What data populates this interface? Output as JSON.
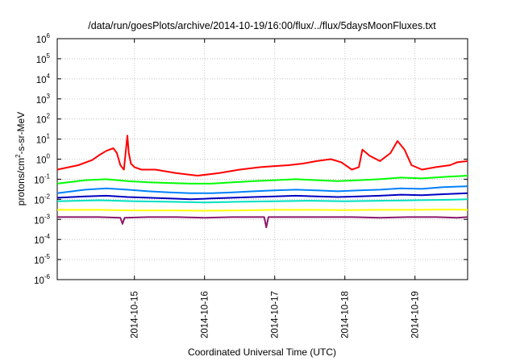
{
  "chart_data": {
    "type": "line",
    "title": "/data/run/goesPlots/archive/2014-10-19/16:00/flux/../flux/5daysMoonFluxes.txt",
    "xlabel": "Coordinated Universal Time (UTC)",
    "ylabel_base": "protons/cm",
    "ylabel_sup": "2",
    "ylabel_tail": "-s-sr-MeV",
    "yscale": "log",
    "ylim": [
      1e-06,
      1000000.0
    ],
    "xlim": [
      13.9,
      19.75
    ],
    "grid": true,
    "legend": "none",
    "y_ticks": [
      {
        "v": 1e-06,
        "base": "10",
        "exp": "-6"
      },
      {
        "v": 1e-05,
        "base": "10",
        "exp": "-5"
      },
      {
        "v": 0.0001,
        "base": "10",
        "exp": "-4"
      },
      {
        "v": 0.001,
        "base": "10",
        "exp": "-3"
      },
      {
        "v": 0.01,
        "base": "10",
        "exp": "-2"
      },
      {
        "v": 0.1,
        "base": "10",
        "exp": "-1"
      },
      {
        "v": 1.0,
        "base": "10",
        "exp": "0"
      },
      {
        "v": 10.0,
        "base": "10",
        "exp": "1"
      },
      {
        "v": 100.0,
        "base": "10",
        "exp": "2"
      },
      {
        "v": 1000.0,
        "base": "10",
        "exp": "3"
      },
      {
        "v": 10000.0,
        "base": "10",
        "exp": "4"
      },
      {
        "v": 100000.0,
        "base": "10",
        "exp": "5"
      },
      {
        "v": 1000000.0,
        "base": "10",
        "exp": "6"
      }
    ],
    "x_ticks": [
      {
        "v": 15,
        "label": "2014-10-15"
      },
      {
        "v": 16,
        "label": "2014-10-16"
      },
      {
        "v": 17,
        "label": "2014-10-17"
      },
      {
        "v": 18,
        "label": "2014-10-18"
      },
      {
        "v": 19,
        "label": "2014-10-19"
      }
    ],
    "series": [
      {
        "color": "#ff0000",
        "x": [
          13.9,
          14.2,
          14.4,
          14.5,
          14.6,
          14.7,
          14.75,
          14.8,
          14.85,
          14.9,
          14.92,
          14.95,
          15.0,
          15.1,
          15.3,
          15.6,
          15.9,
          16.2,
          16.5,
          16.8,
          17.0,
          17.2,
          17.4,
          17.6,
          17.8,
          17.95,
          18.1,
          18.2,
          18.25,
          18.35,
          18.5,
          18.65,
          18.75,
          18.85,
          18.95,
          19.1,
          19.3,
          19.5,
          19.6,
          19.75
        ],
        "y": [
          0.3,
          0.5,
          0.9,
          1.6,
          2.6,
          3.5,
          2.0,
          0.5,
          0.3,
          15,
          2.0,
          0.6,
          0.4,
          0.3,
          0.3,
          0.2,
          0.15,
          0.2,
          0.3,
          0.4,
          0.45,
          0.5,
          0.6,
          0.8,
          1.0,
          0.7,
          0.3,
          0.4,
          3.0,
          1.5,
          0.8,
          2.0,
          8.0,
          3.0,
          0.5,
          0.3,
          0.4,
          0.5,
          0.7,
          0.8
        ]
      },
      {
        "color": "#00ff00",
        "x": [
          13.9,
          14.3,
          14.6,
          14.9,
          15.2,
          15.5,
          15.8,
          16.1,
          16.4,
          16.7,
          17.0,
          17.3,
          17.6,
          17.9,
          18.2,
          18.5,
          18.8,
          19.1,
          19.4,
          19.75
        ],
        "y": [
          0.06,
          0.09,
          0.1,
          0.08,
          0.07,
          0.065,
          0.06,
          0.06,
          0.07,
          0.08,
          0.09,
          0.1,
          0.09,
          0.08,
          0.09,
          0.1,
          0.12,
          0.11,
          0.13,
          0.15
        ]
      },
      {
        "color": "#0080ff",
        "x": [
          13.9,
          14.3,
          14.6,
          14.9,
          15.2,
          15.5,
          15.8,
          16.1,
          16.4,
          16.7,
          17.0,
          17.3,
          17.6,
          17.9,
          18.2,
          18.5,
          18.8,
          19.1,
          19.4,
          19.75
        ],
        "y": [
          0.02,
          0.03,
          0.035,
          0.03,
          0.025,
          0.022,
          0.02,
          0.02,
          0.022,
          0.025,
          0.028,
          0.03,
          0.028,
          0.025,
          0.028,
          0.03,
          0.035,
          0.033,
          0.04,
          0.045
        ]
      },
      {
        "color": "#0000c0",
        "x": [
          13.9,
          14.3,
          14.6,
          14.9,
          15.2,
          15.5,
          15.8,
          16.1,
          16.4,
          16.7,
          17.0,
          17.3,
          17.6,
          17.9,
          18.2,
          18.5,
          18.8,
          19.1,
          19.4,
          19.75
        ],
        "y": [
          0.012,
          0.014,
          0.015,
          0.013,
          0.012,
          0.011,
          0.01,
          0.011,
          0.012,
          0.013,
          0.014,
          0.015,
          0.014,
          0.013,
          0.014,
          0.015,
          0.017,
          0.016,
          0.018,
          0.02
        ]
      },
      {
        "color": "#00e0c0",
        "x": [
          13.9,
          14.5,
          15.0,
          15.5,
          16.0,
          16.5,
          17.0,
          17.5,
          18.0,
          18.5,
          19.0,
          19.5,
          19.75
        ],
        "y": [
          0.008,
          0.009,
          0.008,
          0.0075,
          0.007,
          0.0075,
          0.008,
          0.0085,
          0.008,
          0.0085,
          0.009,
          0.0095,
          0.01
        ]
      },
      {
        "color": "#ffff00",
        "x": [
          13.9,
          14.5,
          15.0,
          15.5,
          16.0,
          16.5,
          17.0,
          17.5,
          18.0,
          18.5,
          19.0,
          19.5,
          19.75
        ],
        "y": [
          0.003,
          0.003,
          0.0028,
          0.0028,
          0.0027,
          0.0028,
          0.003,
          0.003,
          0.0029,
          0.003,
          0.003,
          0.0031,
          0.003
        ]
      },
      {
        "color": "#8b1a6b",
        "x": [
          13.9,
          14.5,
          14.8,
          14.83,
          14.86,
          15.2,
          15.6,
          16.0,
          16.4,
          16.85,
          16.88,
          16.91,
          17.3,
          17.7,
          18.1,
          18.5,
          18.9,
          19.3,
          19.6,
          19.75
        ],
        "y": [
          0.0013,
          0.0013,
          0.0012,
          0.0006,
          0.0012,
          0.0013,
          0.0013,
          0.0012,
          0.0013,
          0.0013,
          0.0004,
          0.0013,
          0.0013,
          0.0013,
          0.0013,
          0.0012,
          0.0013,
          0.0013,
          0.0012,
          0.0013
        ]
      }
    ]
  }
}
